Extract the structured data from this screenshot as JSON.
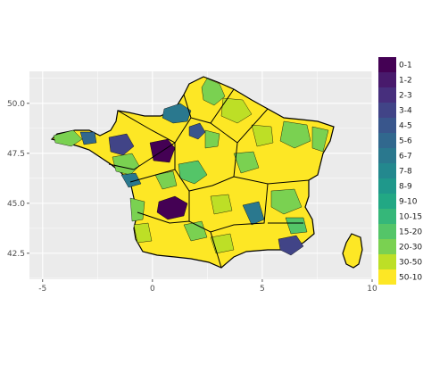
{
  "legend": {
    "title": "",
    "items": [
      {
        "label": "0-1",
        "color": "#440154"
      },
      {
        "label": "1-2",
        "color": "#481a6c"
      },
      {
        "label": "2-3",
        "color": "#472f7d"
      },
      {
        "label": "3-4",
        "color": "#414487"
      },
      {
        "label": "4-5",
        "color": "#39568c"
      },
      {
        "label": "5-6",
        "color": "#31688e"
      },
      {
        "label": "6-7",
        "color": "#2a788e"
      },
      {
        "label": "7-8",
        "color": "#23888e"
      },
      {
        "label": "8-9",
        "color": "#1f988b"
      },
      {
        "label": "9-10",
        "color": "#22a884"
      },
      {
        "label": "10-15",
        "color": "#35b779"
      },
      {
        "label": "15-20",
        "color": "#54c568"
      },
      {
        "label": "20-30",
        "color": "#7ad151"
      },
      {
        "label": "30-50",
        "color": "#bddf26"
      },
      {
        "label": "50-10",
        "color": "#fde725"
      }
    ]
  },
  "axes": {
    "x_ticks": [
      {
        "value": -5,
        "label": "-5"
      },
      {
        "value": 0,
        "label": "0"
      },
      {
        "value": 5,
        "label": "5"
      },
      {
        "value": 10,
        "label": "10"
      }
    ],
    "y_ticks": [
      {
        "value": 42.5,
        "label": "42.5"
      },
      {
        "value": 45.0,
        "label": "45.0"
      },
      {
        "value": 47.5,
        "label": "47.5"
      },
      {
        "value": 50.0,
        "label": "50.0"
      }
    ],
    "x_range": [
      -5.6,
      10.0
    ],
    "y_range": [
      41.2,
      51.6
    ]
  },
  "colors": {
    "panel_background": "#ebebeb",
    "grid_major": "#ffffff",
    "region_border": "#000000",
    "land_default": "#fde725"
  }
}
